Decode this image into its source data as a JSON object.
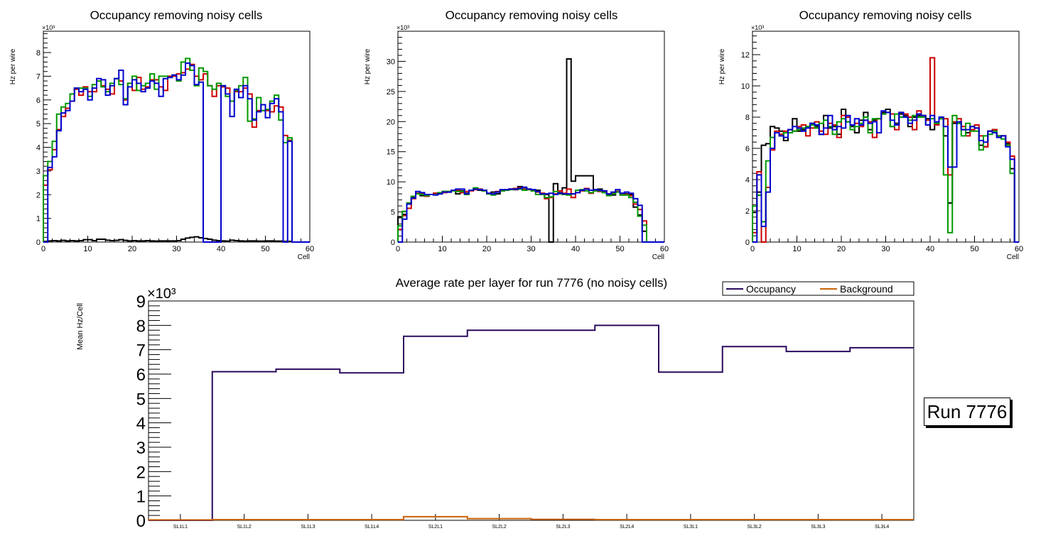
{
  "run_label": "Run 7776",
  "chart_data": [
    {
      "type": "line",
      "title": "Occupancy removing noisy cells",
      "xlabel": "Cell",
      "ylabel": "Hz per wire",
      "exponent_label": "×10³",
      "xlim": [
        0,
        60
      ],
      "ylim": [
        0,
        8.9
      ],
      "xticks": [
        0,
        10,
        20,
        30,
        40,
        50,
        60
      ],
      "yticks": [
        0,
        1,
        2,
        3,
        4,
        5,
        6,
        7,
        8
      ],
      "series": [
        {
          "name": "layer-black",
          "color": "#000000",
          "values": [
            0.03,
            0.05,
            0.06,
            0.05,
            0.07,
            0.05,
            0.06,
            0.05,
            0.06,
            0.1,
            0.1,
            0.06,
            0.12,
            0.12,
            0.08,
            0.06,
            0.07,
            0.1,
            0.07,
            0.05,
            0.06,
            0.05,
            0.05,
            0.06,
            0.05,
            0.04,
            0.05,
            0.05,
            0.05,
            0.05,
            0.06,
            0.12,
            0.17,
            0.2,
            0.22,
            0.18,
            0.15,
            0.12,
            0.08,
            0.06,
            0.05,
            0.04,
            0.08,
            0.06,
            0.05,
            0.04,
            0.05,
            0.05,
            0.04,
            0.04,
            0.05,
            0.05,
            0.04,
            0.04,
            0.03,
            0.03,
            0.0,
            0.0,
            0.0,
            0.0
          ]
        },
        {
          "name": "layer-red",
          "color": "#cc0000",
          "values": [
            2.4,
            3.05,
            3.9,
            4.75,
            5.3,
            5.65,
            5.95,
            6.45,
            6.2,
            6.55,
            6.35,
            6.35,
            6.8,
            6.6,
            6.45,
            6.25,
            6.9,
            6.8,
            6.0,
            6.7,
            6.4,
            6.95,
            6.45,
            6.55,
            6.85,
            6.85,
            6.55,
            6.4,
            7.0,
            7.0,
            7.1,
            7.15,
            7.3,
            7.5,
            7.0,
            6.85,
            7.1,
            6.6,
            6.15,
            6.6,
            6.55,
            6.5,
            5.95,
            6.35,
            6.35,
            6.5,
            6.25,
            4.85,
            5.55,
            5.55,
            5.55,
            5.5,
            5.75,
            5.7,
            4.5,
            4.3,
            0.0,
            0.0,
            0.0,
            0.0
          ]
        },
        {
          "name": "layer-green",
          "color": "#009900",
          "values": [
            2.8,
            3.4,
            4.25,
            5.4,
            5.7,
            5.85,
            6.25,
            6.5,
            6.5,
            6.5,
            6.15,
            6.65,
            6.8,
            6.55,
            6.35,
            6.7,
            6.9,
            6.65,
            6.05,
            6.7,
            7.0,
            6.4,
            6.6,
            6.7,
            7.1,
            6.45,
            7.0,
            7.0,
            6.95,
            7.05,
            6.8,
            7.6,
            7.75,
            7.25,
            6.6,
            7.35,
            7.2,
            6.6,
            6.45,
            6.7,
            6.6,
            6.15,
            5.95,
            6.4,
            6.6,
            6.95,
            5.1,
            5.2,
            6.1,
            5.55,
            5.6,
            5.95,
            6.2,
            5.15,
            4.2,
            4.4,
            0.0,
            0.0,
            0.0,
            0.0
          ]
        },
        {
          "name": "layer-blue",
          "color": "#0000cc",
          "values": [
            0.0,
            3.15,
            3.6,
            4.7,
            5.45,
            5.55,
            5.95,
            6.5,
            6.35,
            6.45,
            6.0,
            6.5,
            6.9,
            6.85,
            6.2,
            6.6,
            6.9,
            7.25,
            5.8,
            6.55,
            6.85,
            6.7,
            6.35,
            6.5,
            6.8,
            6.7,
            6.15,
            6.9,
            6.95,
            7.05,
            6.85,
            7.05,
            7.55,
            7.45,
            6.65,
            6.75,
            0.0,
            0.0,
            0.0,
            0.0,
            6.6,
            6.25,
            5.3,
            6.45,
            6.1,
            6.6,
            6.05,
            5.15,
            5.5,
            5.8,
            5.25,
            5.85,
            6.05,
            5.5,
            0.0,
            4.25,
            0.0,
            0.0,
            0.0,
            0.0
          ]
        }
      ]
    },
    {
      "type": "line",
      "title": "Occupancy removing noisy cells",
      "xlabel": "Cell",
      "ylabel": "Hz per wire",
      "exponent_label": "×10³",
      "xlim": [
        0,
        60
      ],
      "ylim": [
        0,
        35
      ],
      "xticks": [
        0,
        10,
        20,
        30,
        40,
        50,
        60
      ],
      "yticks": [
        0,
        5,
        10,
        15,
        20,
        25,
        30
      ],
      "series": [
        {
          "name": "layer-black",
          "color": "#000000",
          "values": [
            4.2,
            4.6,
            6.3,
            7.4,
            8.1,
            7.7,
            7.8,
            7.9,
            8.1,
            8.0,
            8.4,
            8.3,
            8.5,
            8.0,
            8.5,
            8.1,
            8.6,
            8.8,
            8.6,
            8.5,
            8.0,
            8.3,
            8.0,
            8.5,
            8.6,
            8.8,
            8.7,
            9.2,
            9.0,
            8.8,
            8.6,
            8.6,
            8.1,
            7.9,
            0.0,
            9.7,
            8.2,
            9.0,
            30.4,
            10.1,
            11.0,
            11.0,
            11.0,
            11.0,
            8.5,
            8.8,
            8.5,
            7.9,
            7.8,
            8.4,
            8.1,
            8.0,
            7.9,
            5.8,
            4.5,
            1.8,
            0.0,
            0.0,
            0.0,
            0.0
          ]
        },
        {
          "name": "layer-red",
          "color": "#cc0000",
          "values": [
            2.1,
            4.4,
            5.6,
            7.2,
            8.1,
            8.0,
            7.6,
            7.9,
            8.1,
            8.1,
            8.2,
            8.4,
            8.6,
            8.6,
            8.2,
            8.4,
            8.5,
            8.7,
            8.8,
            8.5,
            8.1,
            8.0,
            8.4,
            8.6,
            8.7,
            8.8,
            8.9,
            9.0,
            8.7,
            8.7,
            8.5,
            8.3,
            8.1,
            7.2,
            7.4,
            8.0,
            8.5,
            8.1,
            8.8,
            7.4,
            8.2,
            8.5,
            8.9,
            8.1,
            8.7,
            8.4,
            8.4,
            8.0,
            8.1,
            8.4,
            7.8,
            7.9,
            7.7,
            6.3,
            5.4,
            3.5,
            0.0,
            0.0,
            0.0,
            0.0
          ]
        },
        {
          "name": "layer-green",
          "color": "#009900",
          "values": [
            2.7,
            5.1,
            6.5,
            7.6,
            8.0,
            7.9,
            7.7,
            7.9,
            7.9,
            8.2,
            8.4,
            8.4,
            8.5,
            8.4,
            8.4,
            7.9,
            8.6,
            9.0,
            8.7,
            8.5,
            8.0,
            7.8,
            8.3,
            8.5,
            8.6,
            8.7,
            8.8,
            8.8,
            8.6,
            8.7,
            8.5,
            7.9,
            7.9,
            7.4,
            7.5,
            8.4,
            8.0,
            7.9,
            7.8,
            8.0,
            8.6,
            8.7,
            8.5,
            8.2,
            8.5,
            8.5,
            8.2,
            7.7,
            8.0,
            8.3,
            7.8,
            7.8,
            7.4,
            6.6,
            4.3,
            2.8,
            0.0,
            0.0,
            0.0,
            0.0
          ]
        },
        {
          "name": "layer-blue",
          "color": "#0000cc",
          "values": [
            0.0,
            3.8,
            6.3,
            7.3,
            8.4,
            8.2,
            7.9,
            7.9,
            7.8,
            8.0,
            8.3,
            8.3,
            8.6,
            8.8,
            8.8,
            8.0,
            8.6,
            8.8,
            8.7,
            8.6,
            8.1,
            8.0,
            8.3,
            8.7,
            8.7,
            8.8,
            8.8,
            8.9,
            9.1,
            8.8,
            8.7,
            8.4,
            8.0,
            8.0,
            8.1,
            7.9,
            8.1,
            8.0,
            8.0,
            8.0,
            8.2,
            8.6,
            8.8,
            8.6,
            8.7,
            8.6,
            8.5,
            8.0,
            8.3,
            8.7,
            8.1,
            8.3,
            8.1,
            7.2,
            6.1,
            0.0,
            0.0,
            0.0,
            0.0,
            0.0
          ]
        }
      ]
    },
    {
      "type": "line",
      "title": "Occupancy removing noisy cells",
      "xlabel": "Cell",
      "ylabel": "Hz per wire",
      "exponent_label": "×10³",
      "xlim": [
        0,
        60
      ],
      "ylim": [
        0,
        13.5
      ],
      "xticks": [
        0,
        10,
        20,
        30,
        40,
        50,
        60
      ],
      "yticks": [
        0,
        2,
        4,
        6,
        8,
        10,
        12
      ],
      "series": [
        {
          "name": "layer-black",
          "color": "#000000",
          "values": [
            1.9,
            3.2,
            6.2,
            6.3,
            7.4,
            7.3,
            7.1,
            6.5,
            7.2,
            7.9,
            7.1,
            7.2,
            7.4,
            7.6,
            7.4,
            6.9,
            8.1,
            7.3,
            7.4,
            6.9,
            8.5,
            7.7,
            7.4,
            7.0,
            7.8,
            8.3,
            7.2,
            7.8,
            7.9,
            8.3,
            8.5,
            7.4,
            7.6,
            8.2,
            8.1,
            7.4,
            8.0,
            8.1,
            8.1,
            7.9,
            7.2,
            7.6,
            8.0,
            6.8,
            2.5,
            7.6,
            7.6,
            7.2,
            7.0,
            7.4,
            7.3,
            6.2,
            6.1,
            7.1,
            7.2,
            6.8,
            6.8,
            6.3,
            4.7,
            0.0
          ]
        },
        {
          "name": "layer-red",
          "color": "#cc0000",
          "values": [
            0.6,
            4.5,
            0.0,
            3.5,
            5.9,
            7.1,
            6.9,
            7.1,
            7.2,
            7.1,
            7.4,
            7.5,
            6.8,
            7.3,
            7.7,
            7.1,
            6.9,
            7.6,
            7.5,
            6.7,
            8.1,
            8.0,
            7.5,
            7.6,
            7.4,
            7.8,
            7.7,
            6.7,
            7.9,
            8.2,
            8.3,
            8.2,
            7.2,
            8.3,
            8.2,
            8.0,
            7.2,
            8.4,
            8.1,
            7.8,
            11.8,
            7.5,
            7.9,
            7.9,
            4.3,
            7.7,
            7.9,
            7.4,
            6.8,
            7.2,
            7.5,
            6.8,
            6.1,
            7.1,
            7.2,
            6.8,
            6.8,
            6.4,
            5.5,
            0.0
          ]
        },
        {
          "name": "layer-green",
          "color": "#009900",
          "values": [
            2.3,
            3.0,
            1.3,
            5.2,
            6.7,
            7.0,
            6.8,
            7.0,
            7.0,
            7.1,
            7.2,
            7.3,
            7.4,
            7.5,
            7.3,
            7.6,
            7.8,
            7.4,
            6.9,
            7.7,
            7.9,
            7.7,
            7.2,
            7.4,
            7.6,
            8.0,
            7.0,
            7.9,
            7.9,
            8.2,
            8.3,
            7.4,
            8.2,
            8.0,
            8.0,
            7.8,
            8.1,
            8.0,
            8.0,
            7.5,
            7.9,
            7.6,
            7.9,
            4.3,
            0.6,
            8.1,
            7.6,
            6.8,
            7.6,
            7.1,
            7.1,
            5.9,
            6.8,
            6.9,
            7.1,
            6.8,
            6.6,
            6.2,
            4.4,
            0.0
          ]
        },
        {
          "name": "layer-blue",
          "color": "#0000cc",
          "values": [
            0.0,
            4.3,
            1.0,
            3.2,
            6.0,
            7.0,
            6.8,
            6.7,
            7.2,
            7.4,
            7.3,
            7.1,
            7.3,
            7.6,
            7.5,
            6.9,
            7.3,
            8.1,
            7.2,
            7.4,
            7.3,
            8.1,
            7.5,
            7.9,
            7.5,
            7.8,
            7.6,
            7.7,
            7.0,
            8.4,
            8.3,
            7.8,
            7.5,
            8.3,
            8.0,
            7.6,
            7.8,
            8.2,
            8.1,
            7.5,
            8.1,
            7.7,
            8.0,
            7.4,
            4.8,
            4.8,
            7.7,
            7.2,
            7.2,
            7.4,
            7.3,
            6.5,
            6.4,
            7.1,
            7.0,
            6.7,
            6.8,
            6.1,
            5.3,
            0.0
          ]
        }
      ]
    },
    {
      "type": "line",
      "title": "Average rate per layer for run 7776 (no noisy cells)",
      "xlabel": "",
      "ylabel": "Mean Hz/Cell",
      "exponent_label": "×10³",
      "categories": [
        "SL1L1",
        "SL1L2",
        "SL1L3",
        "SL1L4",
        "SL2L1",
        "SL2L2",
        "SL2L3",
        "SL2L4",
        "SL3L1",
        "SL3L2",
        "SL3L3",
        "SL3L4"
      ],
      "ylim": [
        0,
        9
      ],
      "yticks": [
        0,
        1,
        2,
        3,
        4,
        5,
        6,
        7,
        8,
        9
      ],
      "legend": {
        "position": "top-right",
        "entries": [
          "Occupancy",
          "Background"
        ]
      },
      "series": [
        {
          "name": "Occupancy",
          "color": "#2b0a5e",
          "values": [
            0.0,
            6.1,
            6.2,
            6.05,
            7.55,
            7.8,
            7.8,
            8.0,
            6.08,
            7.13,
            6.93,
            7.08
          ]
        },
        {
          "name": "Background",
          "color": "#c8640a",
          "values": [
            0.02,
            0.03,
            0.03,
            0.03,
            0.15,
            0.07,
            0.04,
            0.03,
            0.03,
            0.03,
            0.03,
            0.03
          ]
        }
      ]
    }
  ]
}
